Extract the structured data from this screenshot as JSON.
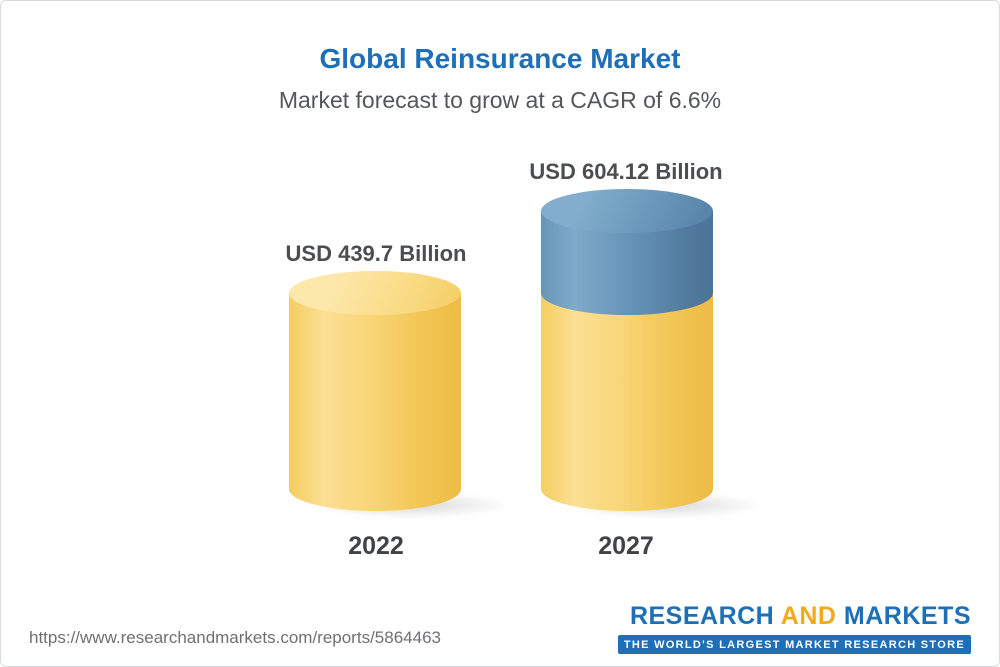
{
  "header": {
    "title": "Global Reinsurance Market",
    "subtitle": "Market forecast to grow at a CAGR of 6.6%"
  },
  "chart_data": {
    "type": "bar",
    "title": "Global Reinsurance Market",
    "subtitle": "Market forecast to grow at a CAGR of 6.6%",
    "categories": [
      "2022",
      "2027"
    ],
    "values": [
      439.7,
      604.12
    ],
    "value_labels": [
      "USD 439.7 Billion",
      "USD 604.12 Billion"
    ],
    "unit": "USD Billion",
    "cagr_percent": 6.6,
    "ylim": [
      0,
      604.12
    ],
    "grid": false,
    "legend_position": "none",
    "bar_style": "3d-cylinder",
    "series_notes": "2027 bar shows base value in yellow with growth portion above 439.7 shaded blue",
    "bar_color_base": "#f8d172",
    "bar_color_growth": "#5d8cb0"
  },
  "footer": {
    "report_url": "https://www.researchandmarkets.com/reports/5864463",
    "logo": {
      "word1": "RESEARCH",
      "word2": "AND",
      "word3": "MARKETS",
      "tagline": "THE WORLD'S LARGEST MARKET RESEARCH STORE"
    }
  },
  "colors": {
    "title_blue": "#1d70b7",
    "subtitle_gray": "#54565a",
    "value_label_gray": "#4c4d4f",
    "bar_yellow": "#f8d172",
    "bar_blue": "#5d8cb0",
    "logo_blue": "#1d70b7",
    "logo_yellow": "#f2aa1d",
    "url_gray": "#6f7072",
    "background": "#ffffff"
  }
}
